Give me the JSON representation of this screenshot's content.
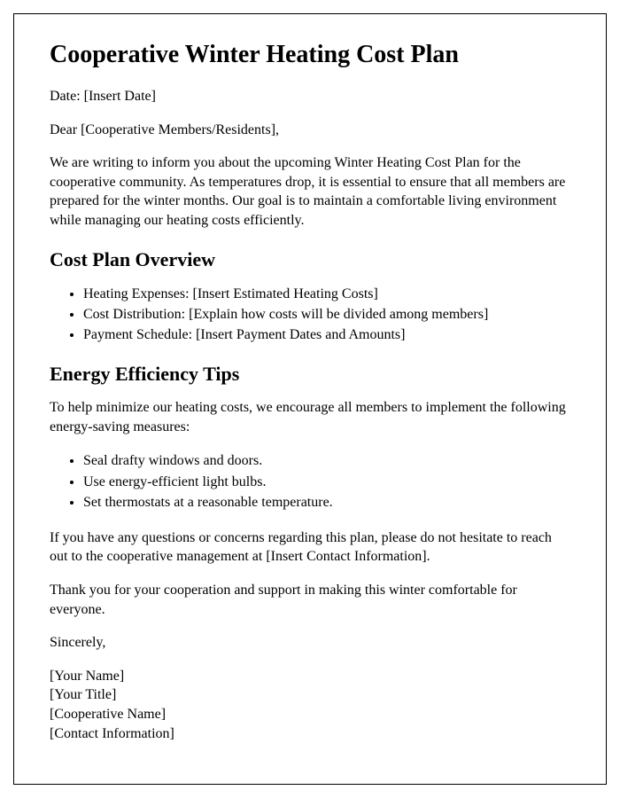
{
  "title": "Cooperative Winter Heating Cost Plan",
  "date_line": "Date: [Insert Date]",
  "salutation": "Dear [Cooperative Members/Residents],",
  "intro_paragraph": "We are writing to inform you about the upcoming Winter Heating Cost Plan for the cooperative community. As temperatures drop, it is essential to ensure that all members are prepared for the winter months. Our goal is to maintain a comfortable living environment while managing our heating costs efficiently.",
  "section1": {
    "heading": "Cost Plan Overview",
    "items": [
      "Heating Expenses: [Insert Estimated Heating Costs]",
      "Cost Distribution: [Explain how costs will be divided among members]",
      "Payment Schedule: [Insert Payment Dates and Amounts]"
    ]
  },
  "section2": {
    "heading": "Energy Efficiency Tips",
    "intro": "To help minimize our heating costs, we encourage all members to implement the following energy-saving measures:",
    "items": [
      "Seal drafty windows and doors.",
      "Use energy-efficient light bulbs.",
      "Set thermostats at a reasonable temperature."
    ]
  },
  "contact_paragraph": "If you have any questions or concerns regarding this plan, please do not hesitate to reach out to the cooperative management at [Insert Contact Information].",
  "thanks_paragraph": "Thank you for your cooperation and support in making this winter comfortable for everyone.",
  "closing": "Sincerely,",
  "signature": {
    "name": "[Your Name]",
    "title": "[Your Title]",
    "coop": "[Cooperative Name]",
    "contact": "[Contact Information]"
  },
  "styles": {
    "background_color": "#ffffff",
    "border_color": "#000000",
    "text_color": "#000000",
    "h1_fontsize": 28,
    "h2_fontsize": 22,
    "body_fontsize": 16,
    "font_family": "Times New Roman"
  }
}
